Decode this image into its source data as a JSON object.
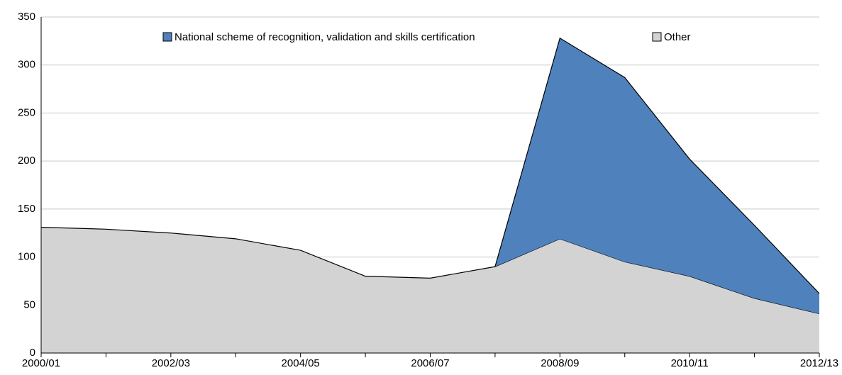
{
  "chart_data": {
    "type": "stacked-area",
    "categories": [
      "2000/01",
      null,
      "2002/03",
      null,
      "2004/05",
      null,
      "2006/07",
      null,
      "2008/09",
      null,
      "2010/11",
      null,
      "2012/13"
    ],
    "series": [
      {
        "name": "National scheme of recognition, validation and skills certification",
        "color": "#4f81bd",
        "values": [
          null,
          null,
          null,
          null,
          null,
          null,
          null,
          0,
          209,
          192,
          122,
          76,
          21
        ]
      },
      {
        "name": "Other",
        "color": "#d3d3d3",
        "values": [
          131,
          129,
          125,
          119,
          107,
          80,
          78,
          90,
          119,
          95,
          80,
          57,
          41
        ]
      }
    ],
    "ylim": [
      0,
      350
    ],
    "yticks": [
      0,
      50,
      100,
      150,
      200,
      250,
      300,
      350
    ],
    "grid": true,
    "legend": "top"
  }
}
